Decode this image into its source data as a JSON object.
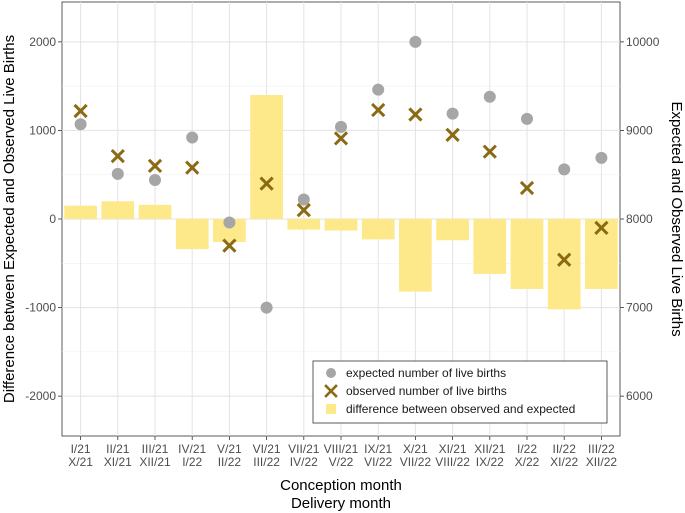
{
  "chart_data": {
    "type": "bar",
    "title": "",
    "xlabel": "Conception month",
    "xlabel2": "Delivery month",
    "ylabel_left": "Difference between Expected and Observed Live Births",
    "ylabel_right": "Expected and Observed Live Births",
    "categories": [
      {
        "conception": "I/21",
        "delivery": "X/21"
      },
      {
        "conception": "II/21",
        "delivery": "XI/21"
      },
      {
        "conception": "III/21",
        "delivery": "XII/21"
      },
      {
        "conception": "IV/21",
        "delivery": "I/22"
      },
      {
        "conception": "V/21",
        "delivery": "II/22"
      },
      {
        "conception": "VI/21",
        "delivery": "III/22"
      },
      {
        "conception": "VII/21",
        "delivery": "IV/22"
      },
      {
        "conception": "VIII/21",
        "delivery": "V/22"
      },
      {
        "conception": "IX/21",
        "delivery": "VI/22"
      },
      {
        "conception": "X/21",
        "delivery": "VII/22"
      },
      {
        "conception": "XI/21",
        "delivery": "VIII/22"
      },
      {
        "conception": "XII/21",
        "delivery": "IX/22"
      },
      {
        "conception": "I/22",
        "delivery": "X/22"
      },
      {
        "conception": "II/22",
        "delivery": "XI/22"
      },
      {
        "conception": "III/22",
        "delivery": "XII/22"
      }
    ],
    "left_axis": {
      "ylim": [
        -2450,
        2450
      ],
      "ticks": [
        -2000,
        -1000,
        0,
        1000,
        2000
      ],
      "tick_labels": [
        "-2000",
        "-1000",
        "0",
        "1000",
        "2000"
      ]
    },
    "right_axis": {
      "ylim": [
        5550,
        10450
      ],
      "ticks": [
        6000,
        7000,
        8000,
        9000,
        10000
      ],
      "tick_labels": [
        "6000",
        "7000",
        "8000",
        "9000",
        "10000"
      ]
    },
    "series": [
      {
        "name": "expected number of live births",
        "kind": "point",
        "marker": "circle",
        "axis": "right",
        "color": "#a6a6a6",
        "values": [
          9070,
          8510,
          8440,
          8920,
          7960,
          7000,
          8220,
          9040,
          9460,
          10000,
          9190,
          9380,
          9130,
          8560,
          8690
        ]
      },
      {
        "name": "observed number of live births",
        "kind": "point",
        "marker": "cross",
        "axis": "right",
        "color": "#8b6a14",
        "values": [
          9220,
          8710,
          8600,
          8580,
          7700,
          8400,
          8100,
          8910,
          9230,
          9180,
          8950,
          8760,
          8350,
          7540,
          7900
        ]
      },
      {
        "name": "difference between observed and expected",
        "kind": "bar",
        "axis": "left",
        "color": "#fde98a",
        "values": [
          150,
          200,
          160,
          -340,
          -260,
          1400,
          -120,
          -130,
          -230,
          -820,
          -240,
          -620,
          -790,
          -1020,
          -790
        ]
      }
    ],
    "grid": true,
    "legend": {
      "position": "bottom-right"
    }
  }
}
